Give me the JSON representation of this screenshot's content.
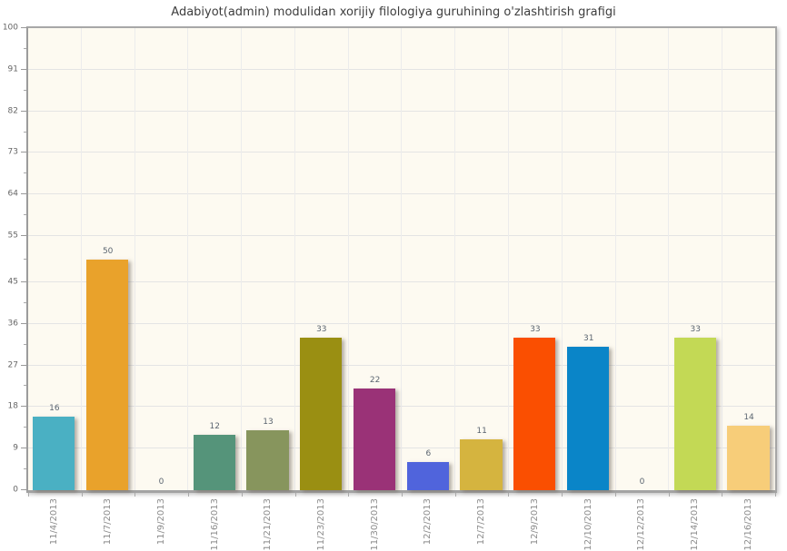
{
  "chart_data": {
    "type": "bar",
    "title": "Adabiyot(admin) modulidan xorijiy filologiya guruhining o'zlashtirish grafigi",
    "categories": [
      "11/4/2013",
      "11/7/2013",
      "11/9/2013",
      "11/16/2013",
      "11/21/2013",
      "11/23/2013",
      "11/30/2013",
      "12/2/2013",
      "12/7/2013",
      "12/9/2013",
      "12/10/2013",
      "12/12/2013",
      "12/14/2013",
      "12/16/2013"
    ],
    "values": [
      16,
      50,
      0,
      12,
      13,
      33,
      22,
      6,
      11,
      33,
      31,
      0,
      33,
      14
    ],
    "bar_colors": [
      "#4ab0c3",
      "#e9a22b",
      null,
      "#55947a",
      "#87955d",
      "#9a8f12",
      "#9a3277",
      "#5064dc",
      "#d5b43f",
      "#fa4f01",
      "#0a85c8",
      null,
      "#c3d955",
      "#f7cd79"
    ],
    "value_labels": [
      "16",
      "50",
      "0",
      "12",
      "13",
      "33",
      "22",
      "6",
      "11",
      "33",
      "31",
      "0",
      "33",
      "14"
    ],
    "y_ticks": [
      0,
      9,
      18,
      27,
      36,
      45,
      55,
      64,
      73,
      82,
      91,
      100
    ],
    "ylim": [
      0,
      100
    ],
    "xlabel": "",
    "ylabel": "",
    "grid": true,
    "legend": "none",
    "x_labels_rotated_degrees": -90,
    "colors": {
      "page_bg": "#ffffff",
      "plot_bg": "#fdfaf1",
      "h_grid": "#e4e4e4",
      "band_grid": "#ececec",
      "axis_border": "#a8a8a8",
      "title_text": "#3d3d3d",
      "y_tick_text": "#666666",
      "value_label_text": "#5b6570",
      "x_label_text": "#8c8c8c"
    }
  }
}
